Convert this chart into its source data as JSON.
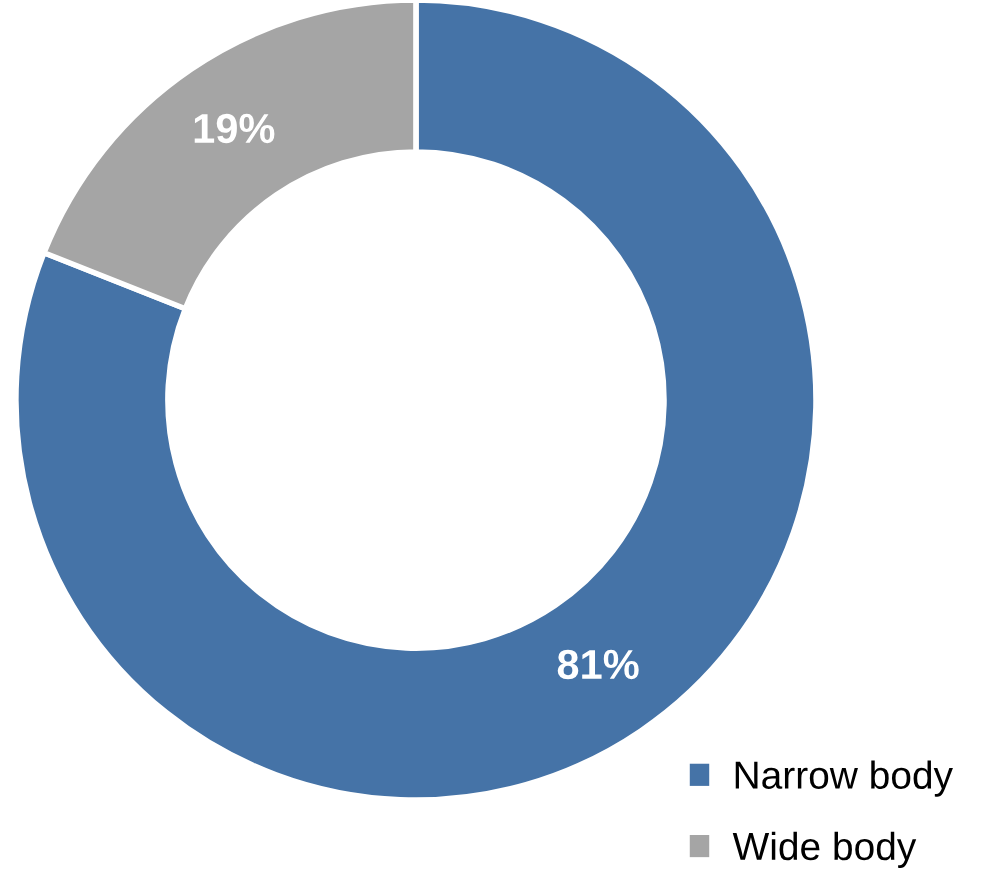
{
  "chart_data": {
    "type": "donut",
    "categories": [
      "Narrow body",
      "Wide body"
    ],
    "values": [
      81,
      19
    ],
    "colors": [
      "#4573a7",
      "#a5a5a5"
    ],
    "value_labels": [
      "81%",
      "19%"
    ],
    "legend": "bottom right"
  }
}
